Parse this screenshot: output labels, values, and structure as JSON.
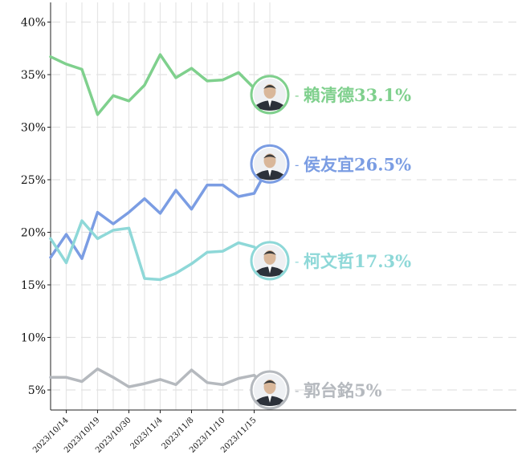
{
  "chart_data": {
    "type": "line",
    "title": "",
    "xlabel": "",
    "ylabel": "",
    "ylim": [
      3,
      42
    ],
    "yticks": [
      5,
      10,
      15,
      20,
      25,
      30,
      35,
      40
    ],
    "ytick_labels": [
      "5%",
      "10%",
      "15%",
      "20%",
      "25%",
      "30%",
      "35%",
      "40%"
    ],
    "xtick_labels": [
      {
        "index": 1,
        "label": "2023/10/14"
      },
      {
        "index": 3,
        "label": "2023/10/19"
      },
      {
        "index": 5,
        "label": "2023/10/30"
      },
      {
        "index": 7,
        "label": "2023/11/4"
      },
      {
        "index": 9,
        "label": "2023/11/8"
      },
      {
        "index": 11,
        "label": "2023/11/10"
      },
      {
        "index": 13,
        "label": "2023/11/15"
      }
    ],
    "num_points": 15,
    "grid": true,
    "series": [
      {
        "name": "賴清德",
        "final_label": "33.1%",
        "color": "#7fd08d",
        "values": [
          36.7,
          36.0,
          35.5,
          31.2,
          33.0,
          32.5,
          34.0,
          36.9,
          34.7,
          35.6,
          34.4,
          34.5,
          35.2,
          33.7,
          33.1
        ]
      },
      {
        "name": "侯友宜",
        "final_label": "26.5%",
        "color": "#7b9de3",
        "values": [
          17.6,
          19.8,
          17.5,
          21.9,
          20.8,
          21.9,
          23.2,
          21.8,
          24.0,
          22.2,
          24.5,
          24.5,
          23.4,
          23.7,
          26.5
        ]
      },
      {
        "name": "柯文哲",
        "final_label": "17.3%",
        "color": "#8ed8d8",
        "values": [
          19.4,
          17.1,
          21.1,
          19.4,
          20.2,
          20.4,
          15.6,
          15.5,
          16.1,
          17.0,
          18.1,
          18.2,
          19.0,
          18.6,
          17.3
        ]
      },
      {
        "name": "郭台銘",
        "final_label": "5%",
        "color": "#b5b9be",
        "values": [
          6.2,
          6.2,
          5.8,
          7.0,
          6.2,
          5.3,
          5.6,
          6.0,
          5.5,
          6.9,
          5.7,
          5.5,
          6.1,
          6.4,
          5.0
        ]
      }
    ],
    "avatar_icons": [
      "person-avatar-icon",
      "person-avatar-icon",
      "person-avatar-icon",
      "person-avatar-icon"
    ]
  }
}
